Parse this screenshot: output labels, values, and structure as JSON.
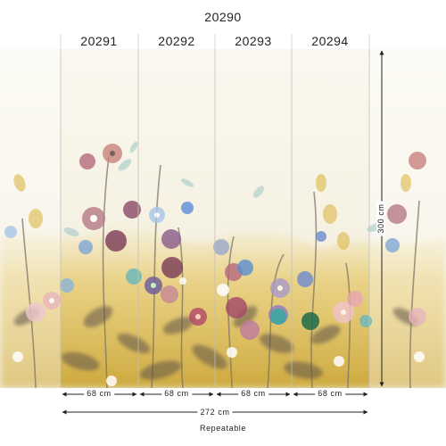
{
  "title": "20290",
  "panels": [
    {
      "code": "20291",
      "width": "68 cm"
    },
    {
      "code": "20292",
      "width": "68 cm"
    },
    {
      "code": "20293",
      "width": "68 cm"
    },
    {
      "code": "20294",
      "width": "68 cm"
    }
  ],
  "total_width": "272 cm",
  "height": "300 cm",
  "repeat_note": "Repeatable",
  "colors": {
    "background": "#f8f5ea",
    "ochre": "#d9b23a",
    "mauve": "#b56a7d",
    "plum": "#7a3a55",
    "lilac": "#a99ac9",
    "teal": "#6fb7b9",
    "leaf": "#8a7f6a"
  }
}
